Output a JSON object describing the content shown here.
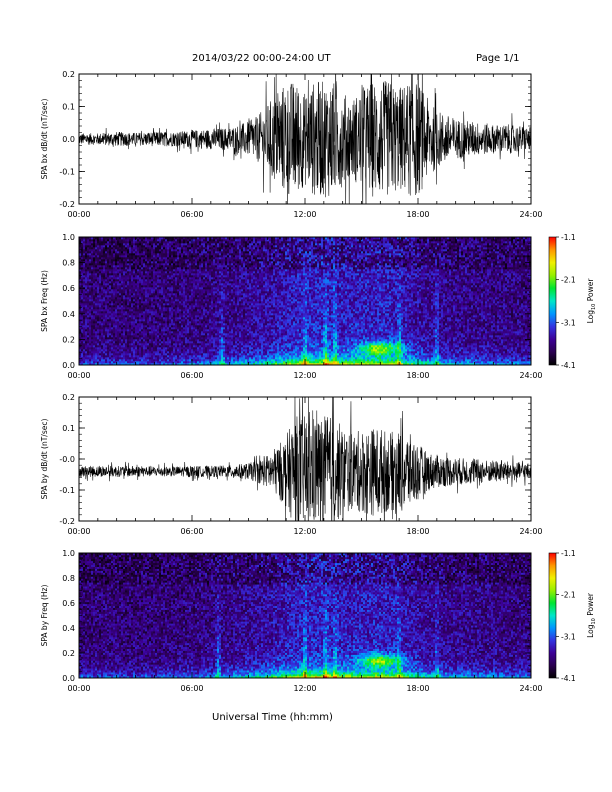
{
  "header": {
    "title": "2014/03/22  00:00-24:00 UT",
    "page": "Page 1/1"
  },
  "footer": {
    "x_axis_title": "Universal Time (hh:mm)"
  },
  "colorbar": {
    "ticks": [
      "-1.1",
      "-2.1",
      "-3.1",
      "-4.1"
    ],
    "tick_values": [
      -1.1,
      -2.1,
      -3.1,
      -4.1
    ],
    "range": [
      -4.1,
      -1.1
    ],
    "label": "Log",
    "label_sub": "10",
    "label_tail": " Power",
    "colors": [
      "#000000",
      "#2a0050",
      "#3c0096",
      "#3333e0",
      "#0096ff",
      "#00e6c8",
      "#00e632",
      "#96f000",
      "#f0f000",
      "#ff9600",
      "#ff0000"
    ]
  },
  "chart_data": [
    {
      "type": "line",
      "name": "bx-dbdt",
      "ylabel": "SPA bx dB/dt (nT/sec)",
      "xlim": [
        0,
        24
      ],
      "ylim": [
        -0.2,
        0.2
      ],
      "x_ticks": [
        "00:00",
        "06:00",
        "12:00",
        "18:00",
        "24:00"
      ],
      "x_tick_values": [
        0,
        6,
        12,
        18,
        24
      ],
      "y_ticks": [
        "0.2",
        "0.1",
        "0.0",
        "-0.1",
        "-0.2"
      ],
      "y_tick_values": [
        0.2,
        0.1,
        0.0,
        -0.1,
        -0.2
      ],
      "color": "#000000",
      "envelope": {
        "hours": [
          0,
          1,
          2,
          3,
          4,
          5,
          6,
          7,
          8,
          9,
          9.5,
          10,
          10.5,
          11,
          11.5,
          12,
          12.5,
          13,
          13.5,
          14,
          14.5,
          15,
          15.5,
          16,
          16.5,
          17,
          17.5,
          18,
          18.5,
          19,
          20,
          21,
          22,
          23,
          24
        ],
        "amplitude": [
          0.02,
          0.02,
          0.025,
          0.022,
          0.025,
          0.025,
          0.03,
          0.035,
          0.04,
          0.06,
          0.08,
          0.12,
          0.16,
          0.2,
          0.2,
          0.16,
          0.2,
          0.2,
          0.2,
          0.16,
          0.14,
          0.17,
          0.2,
          0.2,
          0.2,
          0.18,
          0.2,
          0.2,
          0.14,
          0.1,
          0.07,
          0.06,
          0.05,
          0.05,
          0.04
        ],
        "offset": 0.0
      }
    },
    {
      "type": "heatmap",
      "name": "bx-freq",
      "ylabel": "SPA bx Freq (Hz)",
      "xlim": [
        0,
        24
      ],
      "ylim": [
        0.0,
        1.0
      ],
      "zlim": [
        -4.1,
        -1.1
      ],
      "x_ticks": [
        "00:00",
        "06:00",
        "12:00",
        "18:00",
        "24:00"
      ],
      "x_tick_values": [
        0,
        6,
        12,
        18,
        24
      ],
      "y_ticks": [
        "1.0",
        "0.8",
        "0.6",
        "0.4",
        "0.2",
        "0.0"
      ],
      "y_tick_values": [
        1.0,
        0.8,
        0.6,
        0.4,
        0.2,
        0.0
      ],
      "activity": {
        "hours": [
          0,
          2,
          4,
          6,
          8,
          9,
          10,
          11,
          12,
          13,
          14,
          15,
          16,
          17,
          18,
          19,
          20,
          22,
          24
        ],
        "level": [
          0.3,
          0.3,
          0.3,
          0.35,
          0.45,
          0.5,
          0.6,
          0.75,
          0.85,
          0.9,
          0.8,
          0.8,
          0.85,
          0.75,
          0.6,
          0.5,
          0.45,
          0.4,
          0.35
        ]
      },
      "bursts_hours": [
        7.6,
        12.0,
        13.1,
        13.6,
        17.0,
        19.0
      ],
      "blob": {
        "hour": 16.0,
        "freq_hz": 0.13
      }
    },
    {
      "type": "line",
      "name": "by-dbdt",
      "ylabel": "SPA by dB/dt (nT/sec)",
      "xlim": [
        0,
        24
      ],
      "ylim": [
        -0.2,
        0.2
      ],
      "x_ticks": [
        "00:00",
        "06:00",
        "12:00",
        "18:00",
        "24:00"
      ],
      "x_tick_values": [
        0,
        6,
        12,
        18,
        24
      ],
      "y_ticks": [
        "0.2",
        "0.1",
        "-0.0",
        "-0.1",
        "-0.2"
      ],
      "y_tick_values": [
        0.2,
        0.1,
        0.0,
        -0.1,
        -0.2
      ],
      "color": "#000000",
      "envelope": {
        "hours": [
          0,
          1,
          2,
          3,
          4,
          5,
          6,
          7,
          8,
          9,
          9.5,
          10,
          10.5,
          11,
          11.5,
          12,
          12.5,
          13,
          13.5,
          14,
          14.5,
          15,
          15.5,
          16,
          16.5,
          17,
          17.5,
          18,
          18.5,
          19,
          20,
          21,
          22,
          23,
          24
        ],
        "amplitude": [
          0.02,
          0.02,
          0.02,
          0.02,
          0.018,
          0.018,
          0.02,
          0.02,
          0.022,
          0.03,
          0.04,
          0.06,
          0.09,
          0.13,
          0.2,
          0.2,
          0.2,
          0.2,
          0.2,
          0.16,
          0.14,
          0.15,
          0.16,
          0.16,
          0.14,
          0.15,
          0.14,
          0.1,
          0.07,
          0.06,
          0.05,
          0.045,
          0.04,
          0.035,
          0.03
        ],
        "offset": -0.04
      }
    },
    {
      "type": "heatmap",
      "name": "by-freq",
      "ylabel": "SPA by Freq (Hz)",
      "xlim": [
        0,
        24
      ],
      "ylim": [
        0.0,
        1.0
      ],
      "zlim": [
        -4.1,
        -1.1
      ],
      "x_ticks": [
        "00:00",
        "06:00",
        "12:00",
        "18:00",
        "24:00"
      ],
      "x_tick_values": [
        0,
        6,
        12,
        18,
        24
      ],
      "y_ticks": [
        "1.0",
        "0.8",
        "0.6",
        "0.4",
        "0.2",
        "0.0"
      ],
      "y_tick_values": [
        1.0,
        0.8,
        0.6,
        0.4,
        0.2,
        0.0
      ],
      "activity": {
        "hours": [
          0,
          2,
          4,
          6,
          8,
          9,
          10,
          11,
          12,
          13,
          14,
          15,
          16,
          17,
          18,
          19,
          20,
          22,
          24
        ],
        "level": [
          0.3,
          0.3,
          0.3,
          0.35,
          0.45,
          0.5,
          0.6,
          0.75,
          0.85,
          0.9,
          0.8,
          0.8,
          0.85,
          0.75,
          0.6,
          0.5,
          0.45,
          0.4,
          0.35
        ]
      },
      "bursts_hours": [
        7.4,
        12.0,
        13.1,
        13.6,
        17.0,
        19.0
      ],
      "blob": {
        "hour": 16.0,
        "freq_hz": 0.14
      }
    }
  ]
}
